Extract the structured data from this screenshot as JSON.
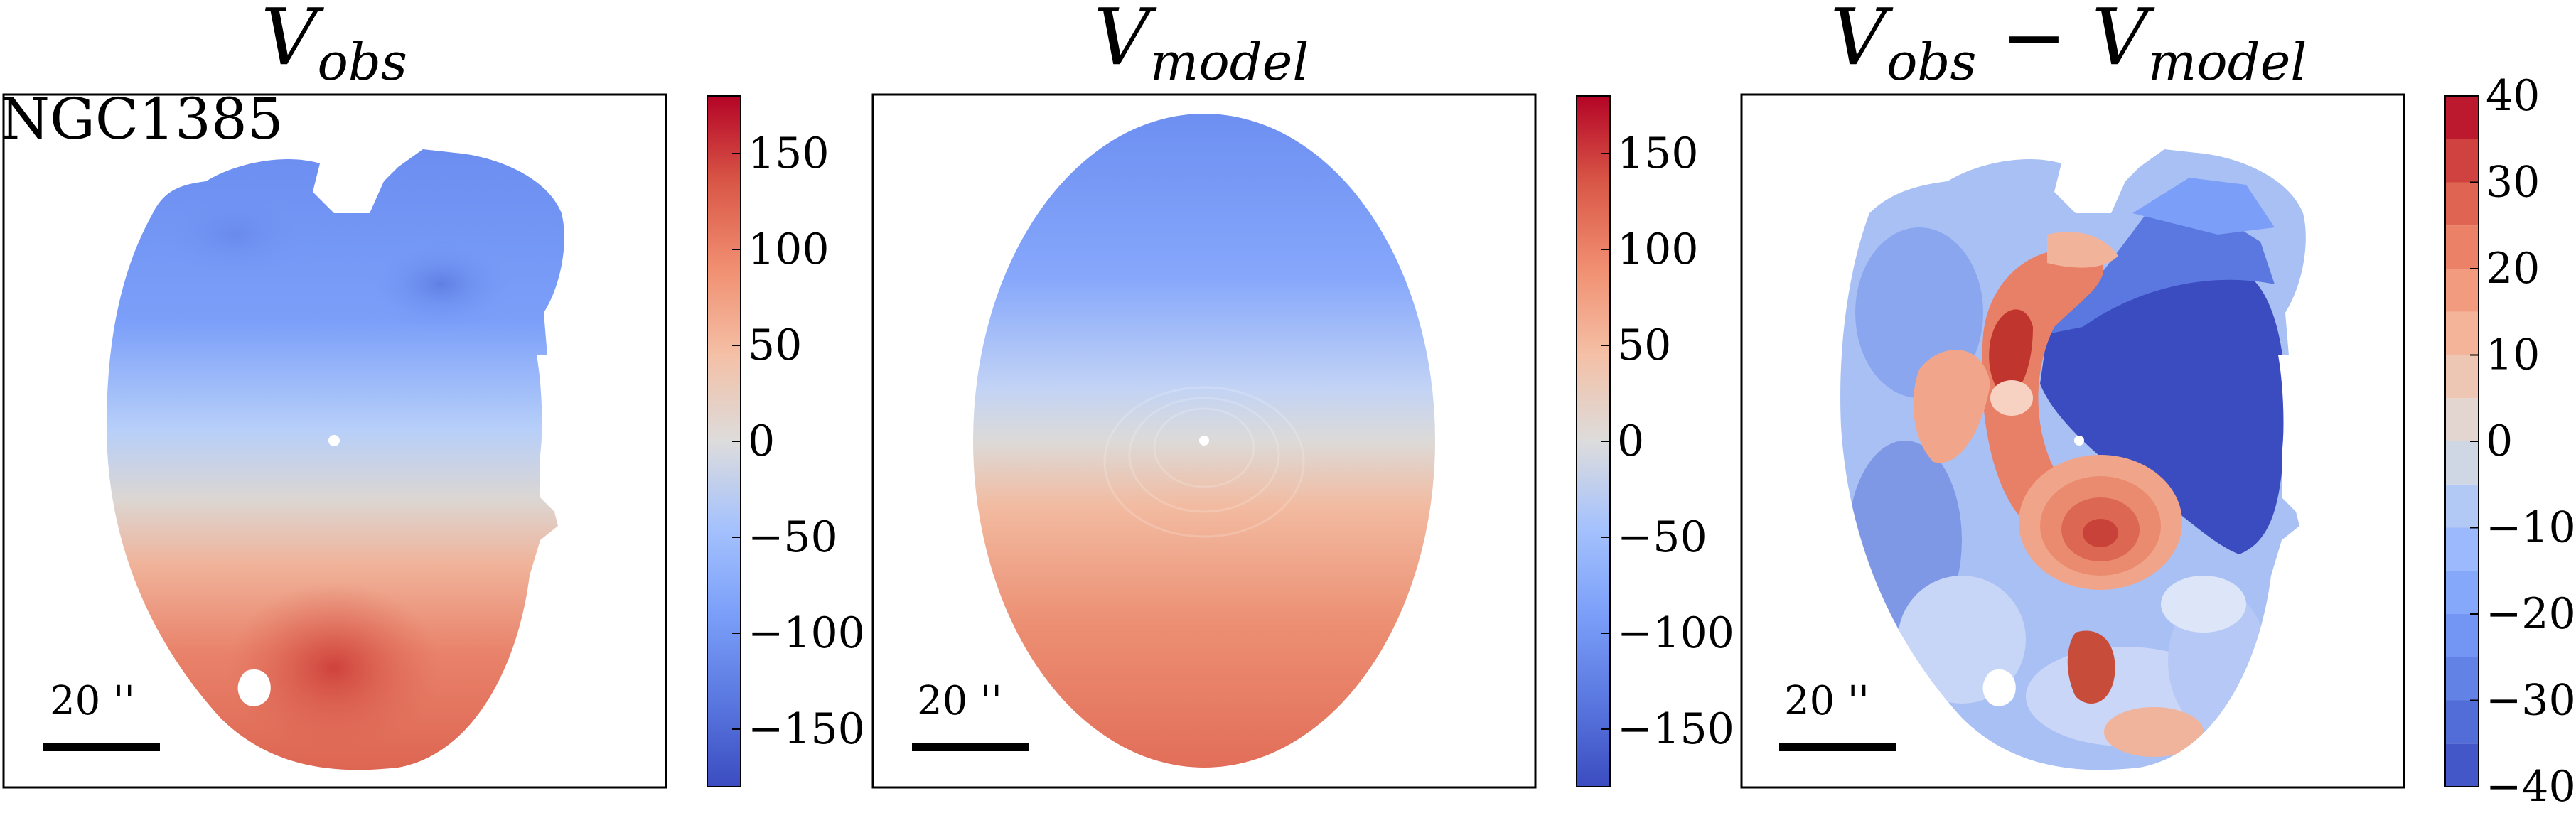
{
  "chart_data": [
    {
      "type": "heatmap",
      "title": "V_obs",
      "title_main": "V",
      "title_sub": "obs",
      "annotation": "NGC1385",
      "scalebar_label": "20 ''",
      "colormap": "coolwarm",
      "colorbar": {
        "range": [
          -180,
          180
        ],
        "ticks": [
          -150,
          -100,
          -50,
          0,
          50,
          100,
          150
        ],
        "tick_labels": [
          "−150",
          "−100",
          "−50",
          "0",
          "50",
          "100",
          "150"
        ],
        "continuous": true
      },
      "field_summary": {
        "north": "negative (approx. -100)",
        "center": "≈ 0",
        "south": "positive (approx. +120)"
      },
      "grid": false
    },
    {
      "type": "heatmap",
      "title": "V_model",
      "title_main": "V",
      "title_sub": "model",
      "scalebar_label": "20 ''",
      "colormap": "coolwarm",
      "colorbar": {
        "range": [
          -180,
          180
        ],
        "ticks": [
          -150,
          -100,
          -50,
          0,
          50,
          100,
          150
        ],
        "tick_labels": [
          "−150",
          "−100",
          "−50",
          "0",
          "50",
          "100",
          "150"
        ],
        "continuous": true
      },
      "field_summary": {
        "north": "negative (approx. -100)",
        "center": "≈ 0",
        "south": "positive (approx. +110)"
      },
      "grid": false
    },
    {
      "type": "heatmap",
      "title": "V_obs − V_model",
      "title_main": "V",
      "title_sub": "obs",
      "title_main2": "V",
      "title_sub2": "model",
      "scalebar_label": "20 ''",
      "colormap": "coolwarm (discrete)",
      "colorbar": {
        "range": [
          -40,
          40
        ],
        "ticks": [
          -40,
          -30,
          -20,
          -10,
          0,
          10,
          20,
          30,
          40
        ],
        "tick_labels": [
          "−40",
          "−30",
          "−20",
          "−10",
          "0",
          "10",
          "20",
          "30",
          "40"
        ],
        "levels": 16,
        "continuous": false
      },
      "grid": false
    }
  ]
}
